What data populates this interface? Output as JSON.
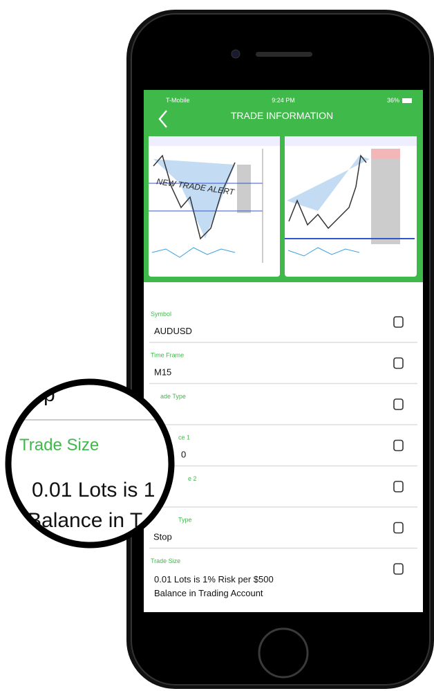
{
  "status_bar": {
    "carrier": "T-Mobile",
    "time": "9:24 PM",
    "battery": "36%"
  },
  "header": {
    "title": "TRADE INFORMATION"
  },
  "chart_overlay": "NEW TRADE ALERT",
  "fields": [
    {
      "label": "Symbol",
      "value": "AUDUSD"
    },
    {
      "label": "Time Frame",
      "value": "M15"
    },
    {
      "label": "ade Type"
    },
    {
      "label": "ce 1",
      "value": "0"
    },
    {
      "label": "e 2"
    },
    {
      "label": "Type",
      "value": "Stop"
    },
    {
      "label": "Trade Size",
      "value": [
        "0.01 Lots is 1% Risk per $500",
        "Balance in Trading Account"
      ]
    }
  ],
  "magnifier": {
    "lines": [
      "Stop",
      "Trade Size",
      "0.01 Lots is 1",
      "Balance in T"
    ]
  }
}
